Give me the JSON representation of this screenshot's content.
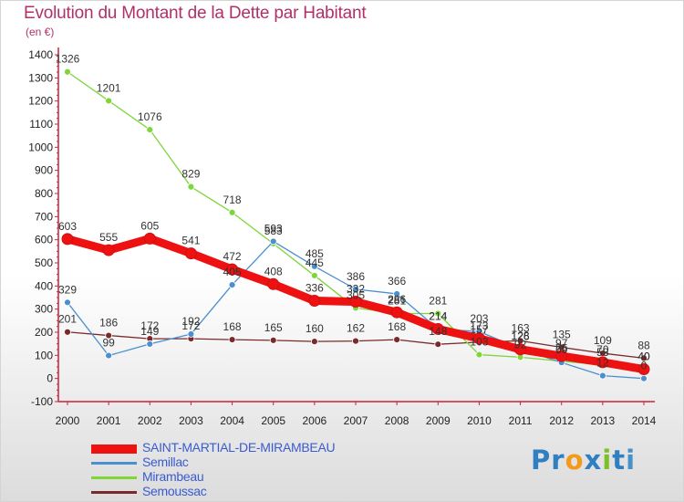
{
  "chart_data": {
    "type": "line",
    "title": "Evolution du Montant de la Dette par Habitant",
    "subtitle": "(en €)",
    "x": [
      "2000",
      "2001",
      "2002",
      "2003",
      "2004",
      "2005",
      "2006",
      "2007",
      "2008",
      "2009",
      "2010",
      "2011",
      "2012",
      "2013",
      "2014"
    ],
    "ylim": [
      -100,
      1400
    ],
    "yticks": [
      -100,
      0,
      100,
      200,
      300,
      400,
      500,
      600,
      700,
      800,
      900,
      1000,
      1100,
      1200,
      1300,
      1400
    ],
    "grid": false,
    "legend_position": "bottom-left",
    "series": [
      {
        "name": "SAINT-MARTIAL-DE-MIRAMBEAU",
        "color": "#ee1111",
        "values": [
          603,
          555,
          605,
          541,
          472,
          408,
          336,
          332,
          286,
          214,
          173,
          126,
          97,
          70,
          40
        ]
      },
      {
        "name": "Semillac",
        "color": "#4b8fcf",
        "values": [
          329,
          99,
          149,
          192,
          405,
          593,
          485,
          386,
          366,
          214,
          203,
          128,
          69,
          12,
          0
        ]
      },
      {
        "name": "Mirambeau",
        "color": "#7ed63a",
        "values": [
          1326,
          1201,
          1076,
          829,
          718,
          583,
          445,
          305,
          281,
          281,
          103,
          92,
          75,
          58,
          40
        ]
      },
      {
        "name": "Semoussac",
        "color": "#7a2a2a",
        "values": [
          201,
          186,
          172,
          172,
          168,
          165,
          160,
          162,
          168,
          148,
          157,
          163,
          135,
          109,
          88
        ]
      }
    ]
  },
  "brand": {
    "letters": [
      "P",
      "r",
      "o",
      "x",
      "i",
      "t",
      "i"
    ]
  }
}
